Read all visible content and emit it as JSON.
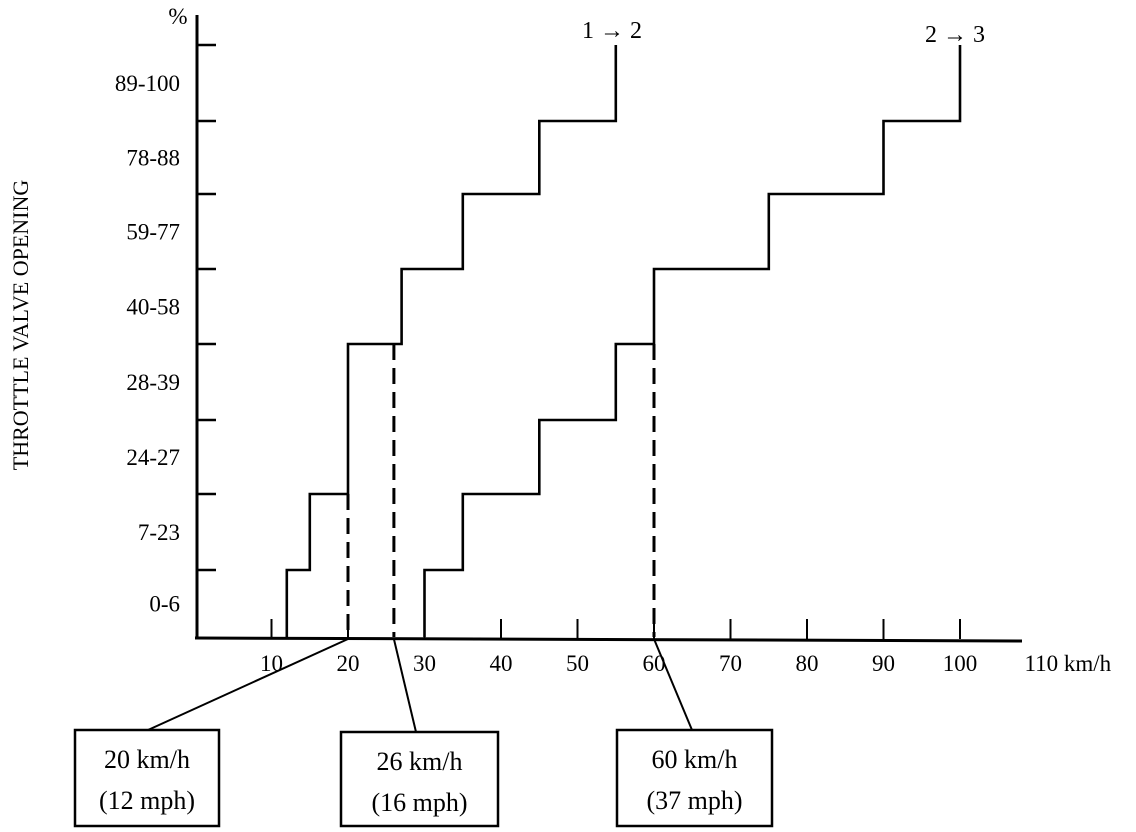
{
  "chart_data": {
    "type": "line",
    "title": "",
    "ylabel": "THROTTLE VALVE OPENING",
    "y_unit": "%",
    "x_unit": "km/h",
    "xlim": [
      0,
      110
    ],
    "x_ticks": [
      10,
      20,
      30,
      40,
      50,
      60,
      70,
      80,
      90,
      100,
      110
    ],
    "x_tick_labels": [
      "10",
      "20",
      "30",
      "40",
      "50",
      "60",
      "70",
      "80",
      "90",
      "100",
      "110 km/h"
    ],
    "y_categories": [
      "0-6",
      "7-23",
      "24-27",
      "28-39",
      "40-58",
      "59-77",
      "78-88",
      "89-100"
    ],
    "grid": false,
    "series": [
      {
        "name": "1 → 2",
        "points": [
          [
            12,
            0
          ],
          [
            12,
            1
          ],
          [
            15,
            1
          ],
          [
            15,
            2
          ],
          [
            20,
            2
          ],
          [
            20,
            4
          ],
          [
            27,
            4
          ],
          [
            27,
            5
          ],
          [
            35,
            5
          ],
          [
            35,
            6
          ],
          [
            45,
            6
          ],
          [
            45,
            7
          ],
          [
            55,
            7
          ],
          [
            55,
            8
          ]
        ]
      },
      {
        "name": "2 → 3",
        "points": [
          [
            30,
            0
          ],
          [
            30,
            1
          ],
          [
            35,
            1
          ],
          [
            35,
            2
          ],
          [
            45,
            2
          ],
          [
            45,
            3
          ],
          [
            55,
            3
          ],
          [
            55,
            4
          ],
          [
            60,
            4
          ],
          [
            60,
            5
          ],
          [
            75,
            5
          ],
          [
            75,
            6
          ],
          [
            90,
            6
          ],
          [
            90,
            7
          ],
          [
            100,
            7
          ],
          [
            100,
            8
          ]
        ]
      }
    ],
    "annotations": [
      {
        "x": 20,
        "line1": "20 km/h",
        "line2": "(12 mph)"
      },
      {
        "x": 26,
        "line1": "26 km/h",
        "line2": "(16 mph)"
      },
      {
        "x": 60,
        "line1": "60 km/h",
        "line2": "(37 mph)"
      }
    ]
  }
}
